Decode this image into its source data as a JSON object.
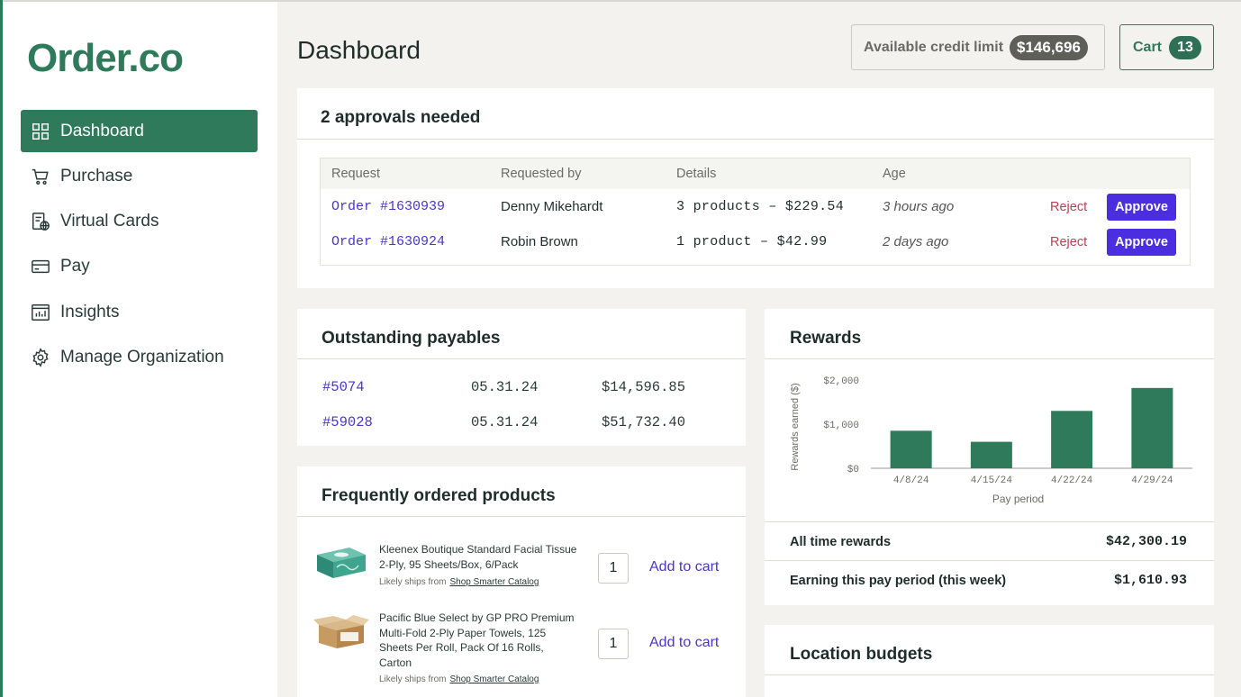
{
  "brand": {
    "logo": "Order.co",
    "accent": "#2f7a5b"
  },
  "sidebar": {
    "items": [
      {
        "label": "Dashboard",
        "icon": "grid-icon",
        "active": true
      },
      {
        "label": "Purchase",
        "icon": "cart-icon"
      },
      {
        "label": "Virtual Cards",
        "icon": "virtual-card-icon"
      },
      {
        "label": "Pay",
        "icon": "credit-card-icon"
      },
      {
        "label": "Insights",
        "icon": "chart-icon"
      },
      {
        "label": "Manage Organization",
        "icon": "gear-icon"
      }
    ]
  },
  "header": {
    "title": "Dashboard",
    "credit_label": "Available credit limit",
    "credit_value": "$146,696",
    "cart_label": "Cart",
    "cart_count": "13"
  },
  "approvals": {
    "title": "2 approvals needed",
    "columns": [
      "Request",
      "Requested by",
      "Details",
      "Age"
    ],
    "rows": [
      {
        "request": "Order #1630939",
        "requested_by": "Denny Mikehardt",
        "details": "3 products – $229.54",
        "age": "3 hours ago",
        "reject": "Reject",
        "approve": "Approve"
      },
      {
        "request": "Order #1630924",
        "requested_by": "Robin Brown",
        "details": "1 product – $42.99",
        "age": "2 days ago",
        "reject": "Reject",
        "approve": "Approve"
      }
    ]
  },
  "payables": {
    "title": "Outstanding payables",
    "rows": [
      {
        "id": "#5074",
        "date": "05.31.24",
        "amount": "$14,596.85"
      },
      {
        "id": "#59028",
        "date": "05.31.24",
        "amount": "$51,732.40"
      }
    ]
  },
  "frequent": {
    "title": "Frequently ordered products",
    "products": [
      {
        "name": "Kleenex Boutique Standard Facial Tissue 2-Ply, 95 Sheets/Box, 6/Pack",
        "ships_label": "Likely ships from",
        "ships_from": "Shop Smarter Catalog",
        "qty": "1",
        "add_label": "Add to cart",
        "icon": "tissue-box-icon"
      },
      {
        "name": "Pacific Blue Select by GP PRO Premium Multi-Fold 2-Ply Paper Towels, 125 Sheets Per Roll, Pack Of 16 Rolls, Carton",
        "ships_label": "Likely ships from",
        "ships_from": "Shop Smarter Catalog",
        "qty": "1",
        "add_label": "Add to cart",
        "icon": "carton-box-icon"
      }
    ]
  },
  "rewards": {
    "title": "Rewards",
    "all_time_label": "All time rewards",
    "all_time_value": "$42,300.19",
    "period_label": "Earning this pay period (this week)",
    "period_value": "$1,610.93"
  },
  "budgets": {
    "title": "Location budgets"
  },
  "chart_data": {
    "type": "bar",
    "categories": [
      "4/8/24",
      "4/15/24",
      "4/22/24",
      "4/29/24"
    ],
    "values": [
      850,
      600,
      1300,
      1820
    ],
    "ylim": [
      0,
      2000
    ],
    "yticks": [
      "$0",
      "$1,000",
      "$2,000"
    ],
    "ytick_values": [
      0,
      1000,
      2000
    ],
    "xlabel": "Pay period",
    "ylabel": "Rewards earned ($)",
    "bar_color": "#2f7a5b",
    "grid": false
  }
}
